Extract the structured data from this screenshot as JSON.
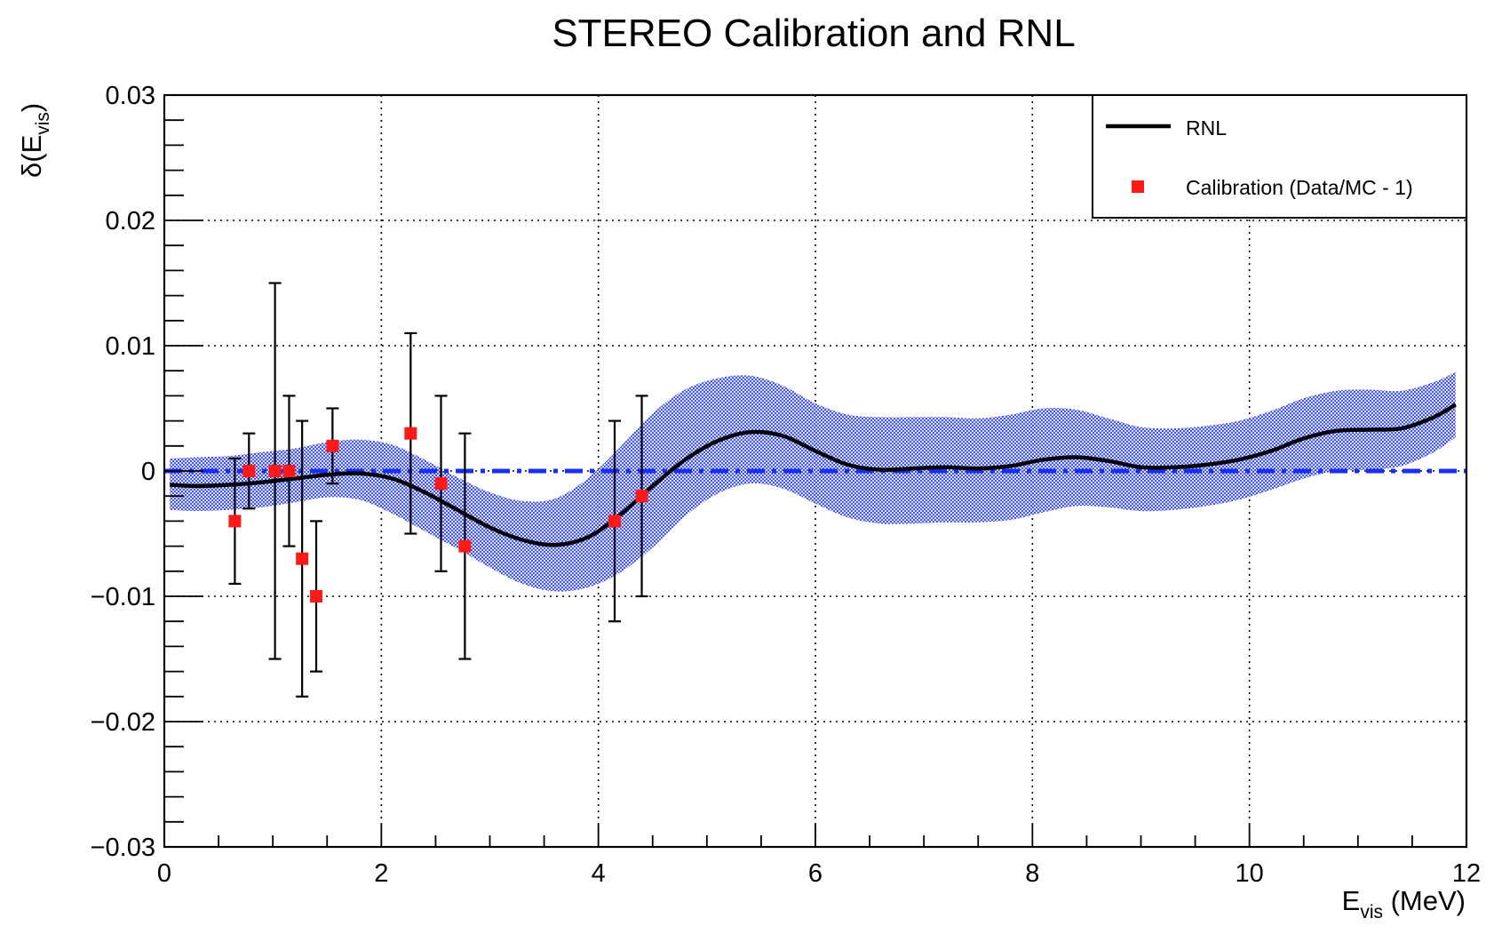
{
  "chart_data": {
    "type": "line",
    "title": "STEREO Calibration and RNL",
    "xlabel": {
      "main": "E",
      "sub": "vis",
      "unit": " (MeV)"
    },
    "ylabel": {
      "prefix": "δ(E",
      "sub": "vis",
      "suffix": ")"
    },
    "xlim": [
      0,
      12
    ],
    "ylim": [
      -0.03,
      0.03
    ],
    "x_ticks": [
      0,
      2,
      4,
      6,
      8,
      10,
      12
    ],
    "x_tick_labels": [
      "0",
      "2",
      "4",
      "6",
      "8",
      "10",
      "12"
    ],
    "y_ticks": [
      -0.03,
      -0.02,
      -0.01,
      0,
      0.01,
      0.02,
      0.03
    ],
    "y_tick_labels": [
      "−0.03",
      "−0.02",
      "−0.01",
      "0",
      "0.01",
      "0.02",
      "0.03"
    ],
    "grid": true,
    "legend_position": "top-right",
    "colors": {
      "rnl": "#000000",
      "band": "#2f43e0",
      "reference": "#1a2ff5",
      "calibration": "#ff1a1a"
    },
    "series": [
      {
        "name": "RNL",
        "kind": "line",
        "x": [
          0.05,
          0.3,
          0.6,
          0.9,
          1.2,
          1.5,
          1.8,
          2.1,
          2.4,
          2.7,
          3.0,
          3.3,
          3.6,
          3.9,
          4.2,
          4.5,
          4.8,
          5.1,
          5.4,
          5.7,
          6.0,
          6.3,
          6.6,
          6.9,
          7.2,
          7.5,
          7.8,
          8.1,
          8.4,
          8.7,
          9.0,
          9.3,
          9.6,
          9.9,
          10.2,
          10.5,
          10.8,
          11.1,
          11.4,
          11.7,
          11.9
        ],
        "y": [
          -0.0011,
          -0.0012,
          -0.0011,
          -0.0009,
          -0.0006,
          -0.0003,
          -0.0002,
          -0.0006,
          -0.0017,
          -0.0031,
          -0.0045,
          -0.0055,
          -0.0059,
          -0.0053,
          -0.0035,
          -0.0012,
          0.0009,
          0.0024,
          0.0031,
          0.0028,
          0.0016,
          0.0005,
          0.0001,
          0.0002,
          0.0003,
          0.0002,
          0.0004,
          0.0009,
          0.0011,
          0.0008,
          0.0003,
          0.0003,
          0.0005,
          0.0009,
          0.0016,
          0.0026,
          0.0032,
          0.0033,
          0.0034,
          0.0043,
          0.0053
        ]
      },
      {
        "kind": "band",
        "x": [
          0.05,
          0.3,
          0.6,
          0.9,
          1.2,
          1.5,
          1.8,
          2.1,
          2.4,
          2.7,
          3.0,
          3.3,
          3.6,
          3.9,
          4.2,
          4.5,
          4.8,
          5.1,
          5.4,
          5.7,
          6.0,
          6.3,
          6.6,
          6.9,
          7.2,
          7.5,
          7.8,
          8.1,
          8.4,
          8.7,
          9.0,
          9.3,
          9.6,
          9.9,
          10.2,
          10.5,
          10.8,
          11.1,
          11.4,
          11.7,
          11.9
        ],
        "upper": [
          0.001,
          0.0011,
          0.0012,
          0.0015,
          0.0018,
          0.0023,
          0.0025,
          0.0021,
          0.0009,
          -0.0005,
          -0.0017,
          -0.0024,
          -0.0022,
          -0.0006,
          0.0019,
          0.0046,
          0.0065,
          0.0074,
          0.0076,
          0.0068,
          0.0054,
          0.0045,
          0.0043,
          0.0043,
          0.0043,
          0.0042,
          0.0045,
          0.005,
          0.0049,
          0.0042,
          0.0035,
          0.0034,
          0.0036,
          0.004,
          0.0048,
          0.0058,
          0.0064,
          0.0065,
          0.0064,
          0.0071,
          0.0079
        ],
        "lower": [
          -0.0031,
          -0.0032,
          -0.0031,
          -0.0029,
          -0.0025,
          -0.0021,
          -0.0023,
          -0.0034,
          -0.0048,
          -0.0062,
          -0.0077,
          -0.009,
          -0.0096,
          -0.0093,
          -0.0081,
          -0.0061,
          -0.0036,
          -0.0018,
          -0.001,
          -0.0014,
          -0.0026,
          -0.0037,
          -0.0042,
          -0.0042,
          -0.0041,
          -0.0041,
          -0.0039,
          -0.0033,
          -0.0028,
          -0.0029,
          -0.0032,
          -0.0031,
          -0.0028,
          -0.0023,
          -0.0015,
          -0.0006,
          0.0,
          0.0001,
          0.0004,
          0.0015,
          0.0027
        ]
      },
      {
        "kind": "reference",
        "x": [
          0,
          12
        ],
        "y": [
          0,
          0
        ]
      },
      {
        "name": "Calibration (Data/MC - 1)",
        "kind": "points",
        "x": [
          0.65,
          0.78,
          1.02,
          1.15,
          1.27,
          1.4,
          1.55,
          2.27,
          2.55,
          2.77,
          4.15,
          4.4
        ],
        "y": [
          -0.004,
          0.0,
          0.0,
          0.0,
          -0.007,
          -0.01,
          0.002,
          0.003,
          -0.001,
          -0.006,
          -0.004,
          -0.002
        ],
        "err_low": [
          -0.009,
          -0.003,
          -0.015,
          -0.006,
          -0.018,
          -0.016,
          -0.001,
          -0.005,
          -0.008,
          -0.015,
          -0.012,
          -0.01
        ],
        "err_high": [
          0.001,
          0.003,
          0.015,
          0.006,
          0.004,
          -0.004,
          0.005,
          0.011,
          0.006,
          0.003,
          0.004,
          0.006
        ]
      }
    ]
  }
}
